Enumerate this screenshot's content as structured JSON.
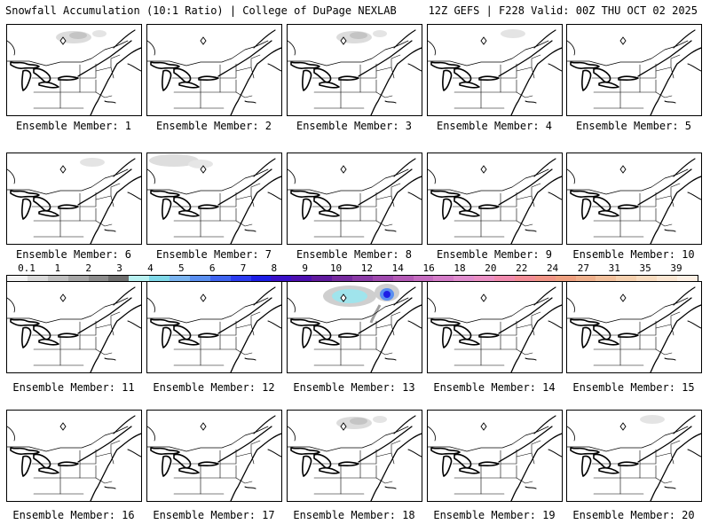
{
  "header": {
    "left": "Snowfall Accumulation (10:1 Ratio) | College of DuPage NEXLAB",
    "right": "12Z GEFS | F228 Valid: 00Z THU OCT 02 2025"
  },
  "members": [
    {
      "label": "Ensemble Member: 1",
      "snow": "light-north"
    },
    {
      "label": "Ensemble Member: 2",
      "snow": "none"
    },
    {
      "label": "Ensemble Member: 3",
      "snow": "light-north"
    },
    {
      "label": "Ensemble Member: 4",
      "snow": "trace-north"
    },
    {
      "label": "Ensemble Member: 5",
      "snow": "none"
    },
    {
      "label": "Ensemble Member: 6",
      "snow": "trace-north"
    },
    {
      "label": "Ensemble Member: 7",
      "snow": "light-northwest"
    },
    {
      "label": "Ensemble Member: 8",
      "snow": "none"
    },
    {
      "label": "Ensemble Member: 9",
      "snow": "none"
    },
    {
      "label": "Ensemble Member: 10",
      "snow": "none"
    },
    {
      "label": "Ensemble Member: 11",
      "snow": "none"
    },
    {
      "label": "Ensemble Member: 12",
      "snow": "none"
    },
    {
      "label": "Ensemble Member: 13",
      "snow": "heavy-quebec"
    },
    {
      "label": "Ensemble Member: 14",
      "snow": "none"
    },
    {
      "label": "Ensemble Member: 15",
      "snow": "none"
    },
    {
      "label": "Ensemble Member: 16",
      "snow": "none"
    },
    {
      "label": "Ensemble Member: 17",
      "snow": "none"
    },
    {
      "label": "Ensemble Member: 18",
      "snow": "light-north"
    },
    {
      "label": "Ensemble Member: 19",
      "snow": "none"
    },
    {
      "label": "Ensemble Member: 20",
      "snow": "trace-north"
    }
  ],
  "colorbar": {
    "labels": [
      "0.1",
      "1",
      "2",
      "3",
      "4",
      "5",
      "6",
      "7",
      "8",
      "9",
      "10",
      "12",
      "14",
      "16",
      "18",
      "20",
      "22",
      "24",
      "27",
      "31",
      "35",
      "39"
    ],
    "colors": [
      "#f2f2f2",
      "#d9d9d9",
      "#bfbfbf",
      "#a6a6a6",
      "#8c8c8c",
      "#6e6e6e",
      "#b8f0f0",
      "#7fd8e8",
      "#7ab4f0",
      "#5a8ff0",
      "#3f64f0",
      "#2c3cf0",
      "#1d1ee6",
      "#3a10c8",
      "#4d0fb0",
      "#601a9e",
      "#762a9e",
      "#8a3aa6",
      "#9f49ae",
      "#b45ab6",
      "#c56cc0",
      "#d47cc8",
      "#e08cce",
      "#ea8fc4",
      "#f08aae",
      "#f28c96",
      "#f09486",
      "#eea080",
      "#efb08c",
      "#f2c09c",
      "#f5d0ae",
      "#f8dcc0",
      "#fbe6d2",
      "#fdf0e4"
    ]
  },
  "icons": {
    "city_marker": "diamond-icon"
  }
}
